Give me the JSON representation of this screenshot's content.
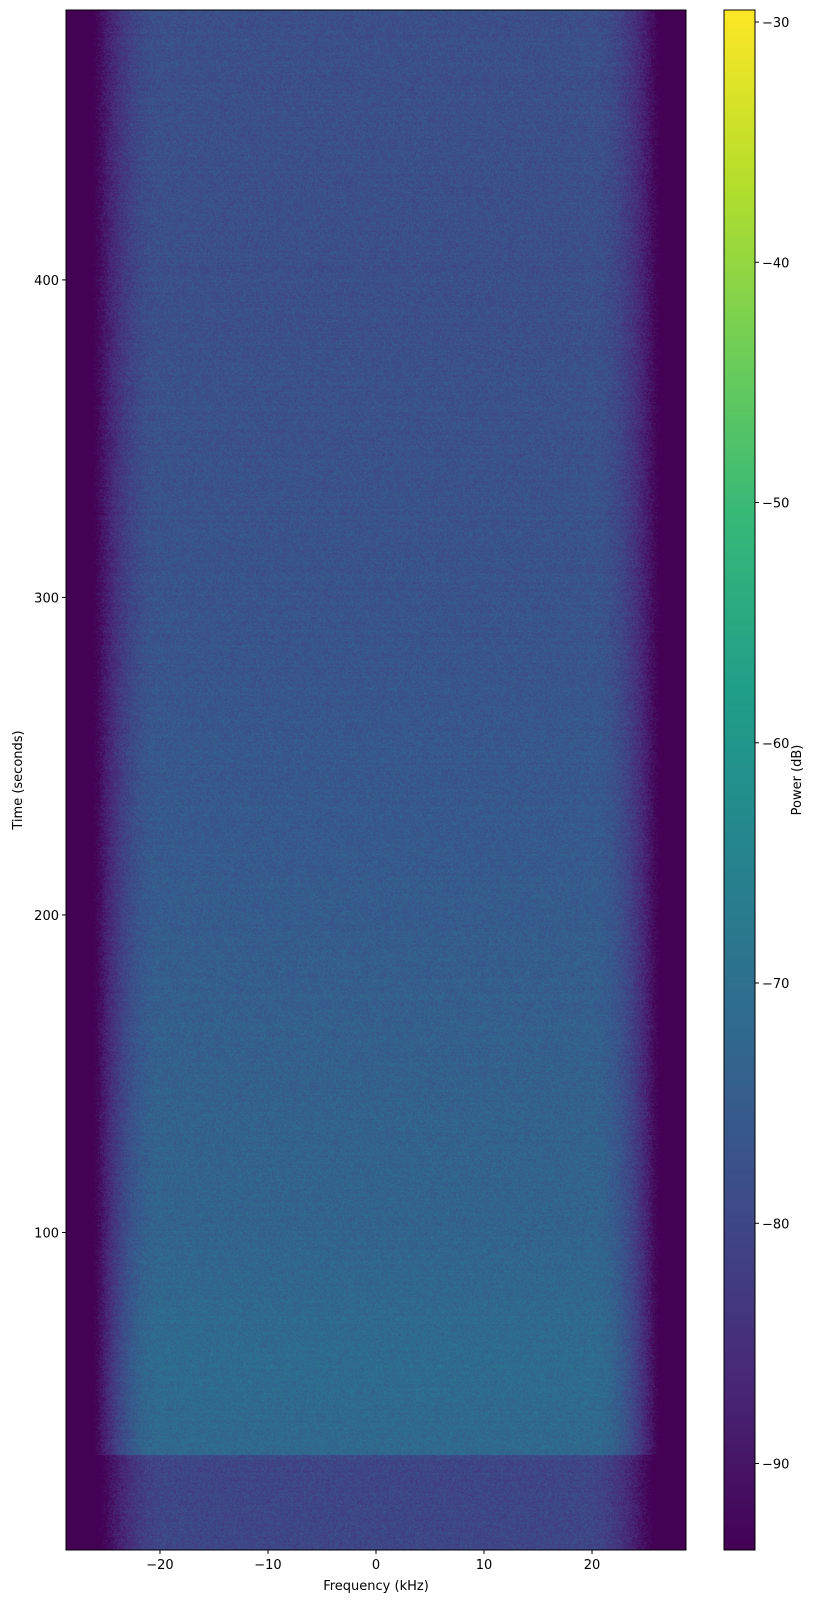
{
  "chart_data": {
    "type": "heatmap",
    "title": "",
    "xlabel": "Frequency (kHz)",
    "ylabel": "Time (seconds)",
    "colorbar_label": "Power (dB)",
    "colormap": "viridis",
    "xlim": [
      -28.7,
      28.7
    ],
    "ylim": [
      0,
      485
    ],
    "clim": [
      -93.6,
      -29.5
    ],
    "xticks": [
      -20,
      -10,
      0,
      10,
      20
    ],
    "xtick_labels": [
      "−20",
      "−10",
      "0",
      "10",
      "20"
    ],
    "yticks": [
      100,
      200,
      300,
      400
    ],
    "ytick_labels": [
      "100",
      "200",
      "300",
      "400"
    ],
    "cbar_ticks": [
      -30,
      -40,
      -50,
      -60,
      -70,
      -80,
      -90
    ],
    "cbar_tick_labels": [
      "−30",
      "−40",
      "−50",
      "−60",
      "−70",
      "−80",
      "−90"
    ],
    "noise_floor_db": -93.5,
    "passband_edge_khz": 26,
    "band_profile": {
      "time_s": [
        0,
        29.9,
        30,
        60,
        100,
        200,
        300,
        400,
        485
      ],
      "power_db": [
        -80,
        -80,
        -72,
        -71,
        -73,
        -75,
        -77,
        -78,
        -78
      ]
    },
    "grid": false
  }
}
